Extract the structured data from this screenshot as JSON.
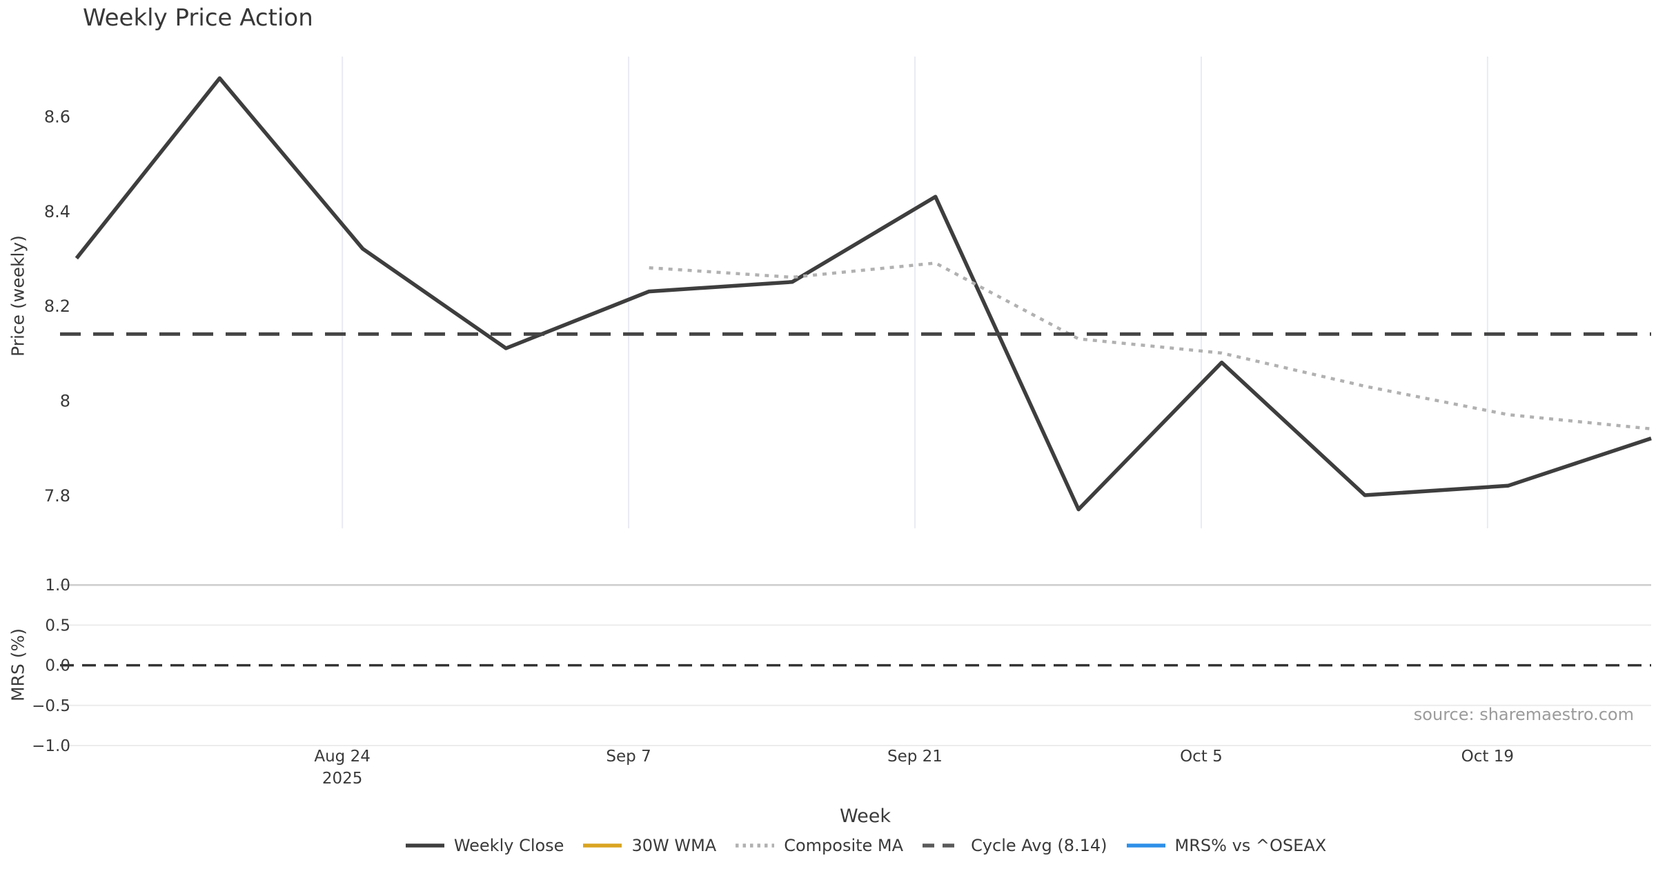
{
  "figure": {
    "title": "Weekly Price Action",
    "xlabel": "Week",
    "source": "source: sharemaestro.com"
  },
  "chart_data": {
    "type": "line",
    "title": "Weekly Price Action",
    "xlabel": "Week",
    "x_weekly_points": [
      "Aug 11",
      "Aug 18",
      "Aug 25",
      "Sep 1",
      "Sep 8",
      "Sep 15",
      "Sep 22",
      "Sep 29",
      "Oct 6",
      "Oct 13",
      "Oct 20",
      "Oct 27"
    ],
    "xlim_index": [
      -0.115,
      11
    ],
    "xticks": [
      {
        "index": 1.857,
        "label": "Aug 24",
        "sublabel": "2025"
      },
      {
        "index": 3.857,
        "label": "Sep 7"
      },
      {
        "index": 5.857,
        "label": "Sep 21"
      },
      {
        "index": 7.857,
        "label": "Oct 5"
      },
      {
        "index": 9.857,
        "label": "Oct 19"
      }
    ],
    "grid": {
      "top_panel": "vertical-only",
      "bottom_panel": "horizontal-only",
      "gridline_color_vertical": "#e8ebf3",
      "gridline_color_horizontal": "#ececec",
      "gridline_color_horizontal_top": "#cdcdcd"
    },
    "panels": [
      {
        "name": "price",
        "ylabel": "Price (weekly)",
        "ylim": [
          7.725,
          8.72
        ],
        "yticks": [
          {
            "v": 8.6,
            "label": "8.6"
          },
          {
            "v": 8.4,
            "label": "8.4"
          },
          {
            "v": 8.2,
            "label": "8.2"
          },
          {
            "v": 8.0,
            "label": "8"
          },
          {
            "v": 7.8,
            "label": "7.8"
          }
        ],
        "series": [
          {
            "name": "Weekly Close",
            "type": "line",
            "style": "solid",
            "color": "#3e3e3e",
            "start_index": 0,
            "values": [
              8.3,
              8.68,
              8.32,
              8.11,
              8.23,
              8.25,
              8.43,
              7.77,
              8.08,
              7.8,
              7.82,
              7.92
            ]
          },
          {
            "name": "30W WMA",
            "type": "line",
            "style": "solid",
            "color": "#d9a41f",
            "start_index": 0,
            "values": []
          },
          {
            "name": "Composite MA",
            "type": "line",
            "style": "dotted",
            "color": "#b1b1b1",
            "start_index": 4,
            "values": [
              8.28,
              8.26,
              8.29,
              8.13,
              8.1,
              8.03,
              7.97,
              7.94
            ]
          },
          {
            "name": "Cycle Avg (8.14)",
            "type": "hline",
            "style": "dashed",
            "color": "#454545",
            "value": 8.14
          }
        ]
      },
      {
        "name": "mrs",
        "ylabel": "MRS (%)",
        "ylim": [
          -1.09,
          1.09
        ],
        "yticks": [
          {
            "v": 1.0,
            "label": "1.0"
          },
          {
            "v": 0.5,
            "label": "0.5"
          },
          {
            "v": 0.0,
            "label": "0.0"
          },
          {
            "v": -0.5,
            "label": "−0.5"
          },
          {
            "v": -1.0,
            "label": "−1.0"
          }
        ],
        "hline_dashed_value": 0.0,
        "series": [
          {
            "name": "MRS% vs ^OSEAX",
            "type": "line",
            "style": "solid",
            "color": "#2d8fe8",
            "start_index": 0,
            "values": []
          }
        ]
      }
    ],
    "legend": {
      "position": "bottom-center",
      "items": [
        {
          "label": "Weekly Close",
          "style": "solid",
          "color": "#3e3e3e"
        },
        {
          "label": "30W WMA",
          "style": "solid",
          "color": "#d9a41f"
        },
        {
          "label": "Composite MA",
          "style": "dotted",
          "color": "#b1b1b1"
        },
        {
          "label": "Cycle Avg (8.14)",
          "style": "dashed",
          "color": "#5a5a5a"
        },
        {
          "label": "MRS% vs ^OSEAX",
          "style": "solid",
          "color": "#2d8fe8"
        }
      ]
    }
  }
}
